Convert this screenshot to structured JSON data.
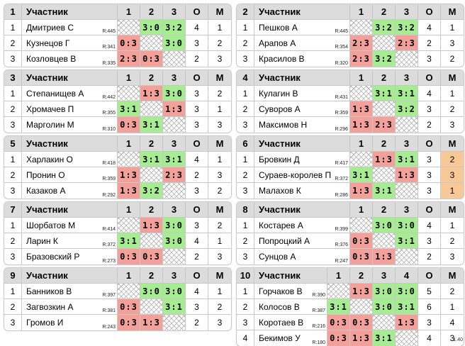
{
  "header": {
    "participant": "Участник",
    "points": "О",
    "place": "М"
  },
  "version": "1.40",
  "groups": [
    {
      "num": "1",
      "cols": [
        "1",
        "2",
        "3"
      ],
      "rows": [
        {
          "idx": "1",
          "name": "Дмитриев С",
          "rating": "R:445",
          "scores": [
            "",
            "3:0",
            "3:2"
          ],
          "res": [
            "x",
            "w",
            "w"
          ],
          "pts": "4",
          "place": "1"
        },
        {
          "idx": "2",
          "name": "Кузнецов Г",
          "rating": "R:341",
          "scores": [
            "0:3",
            "",
            "3:0"
          ],
          "res": [
            "l",
            "x",
            "w"
          ],
          "pts": "3",
          "place": "2"
        },
        {
          "idx": "3",
          "name": "Козловцев В",
          "rating": "R:335",
          "scores": [
            "2:3",
            "0:3",
            ""
          ],
          "res": [
            "l",
            "l",
            "x"
          ],
          "pts": "2",
          "place": "3"
        }
      ]
    },
    {
      "num": "2",
      "cols": [
        "1",
        "2",
        "3"
      ],
      "rows": [
        {
          "idx": "1",
          "name": "Пешков А",
          "rating": "R:445",
          "scores": [
            "",
            "3:2",
            "3:2"
          ],
          "res": [
            "x",
            "w",
            "w"
          ],
          "pts": "4",
          "place": "1"
        },
        {
          "idx": "2",
          "name": "Арапов А",
          "rating": "R:354",
          "scores": [
            "2:3",
            "",
            "2:3"
          ],
          "res": [
            "l",
            "x",
            "l"
          ],
          "pts": "2",
          "place": "3"
        },
        {
          "idx": "3",
          "name": "Красилов В",
          "rating": "R:320",
          "scores": [
            "2:3",
            "3:2",
            ""
          ],
          "res": [
            "l",
            "w",
            "x"
          ],
          "pts": "3",
          "place": "2"
        }
      ]
    },
    {
      "num": "3",
      "cols": [
        "1",
        "2",
        "3"
      ],
      "rows": [
        {
          "idx": "1",
          "name": "Степанищев А",
          "rating": "R:442",
          "scores": [
            "",
            "1:3",
            "3:0"
          ],
          "res": [
            "x",
            "l",
            "w"
          ],
          "pts": "3",
          "place": "2"
        },
        {
          "idx": "2",
          "name": "Хромачев П",
          "rating": "R:355",
          "scores": [
            "3:1",
            "",
            "1:3"
          ],
          "res": [
            "w",
            "x",
            "l"
          ],
          "pts": "3",
          "place": "1"
        },
        {
          "idx": "3",
          "name": "Марголин М",
          "rating": "R:310",
          "scores": [
            "0:3",
            "3:1",
            ""
          ],
          "res": [
            "l",
            "w",
            "x"
          ],
          "pts": "3",
          "place": "3"
        }
      ]
    },
    {
      "num": "4",
      "cols": [
        "1",
        "2",
        "3"
      ],
      "rows": [
        {
          "idx": "1",
          "name": "Кулагин В",
          "rating": "R:431",
          "scores": [
            "",
            "3:1",
            "3:1"
          ],
          "res": [
            "x",
            "w",
            "w"
          ],
          "pts": "4",
          "place": "1"
        },
        {
          "idx": "2",
          "name": "Суворов А",
          "rating": "R:359",
          "scores": [
            "1:3",
            "",
            "3:2"
          ],
          "res": [
            "l",
            "x",
            "w"
          ],
          "pts": "3",
          "place": "2"
        },
        {
          "idx": "3",
          "name": "Максимов Н",
          "rating": "R:296",
          "scores": [
            "1:3",
            "2:3",
            ""
          ],
          "res": [
            "l",
            "l",
            "x"
          ],
          "pts": "2",
          "place": "3"
        }
      ]
    },
    {
      "num": "5",
      "cols": [
        "1",
        "2",
        "3"
      ],
      "rows": [
        {
          "idx": "1",
          "name": "Харлакин О",
          "rating": "R:418",
          "scores": [
            "",
            "3:1",
            "3:1"
          ],
          "res": [
            "x",
            "w",
            "w"
          ],
          "pts": "4",
          "place": "1"
        },
        {
          "idx": "2",
          "name": "Пронин О",
          "rating": "R:359",
          "scores": [
            "1:3",
            "",
            "2:3"
          ],
          "res": [
            "l",
            "x",
            "l"
          ],
          "pts": "2",
          "place": "3"
        },
        {
          "idx": "3",
          "name": "Казаков А",
          "rating": "R:292",
          "scores": [
            "1:3",
            "3:2",
            ""
          ],
          "res": [
            "l",
            "w",
            "x"
          ],
          "pts": "3",
          "place": "2"
        }
      ]
    },
    {
      "num": "6",
      "cols": [
        "1",
        "2",
        "3"
      ],
      "rows": [
        {
          "idx": "1",
          "name": "Бровкин Д",
          "rating": "R:417",
          "scores": [
            "",
            "1:3",
            "3:1"
          ],
          "res": [
            "x",
            "l",
            "w"
          ],
          "pts": "3",
          "place": "2",
          "orange": true
        },
        {
          "idx": "2",
          "name": "Сураев-королев П",
          "rating": "R:372",
          "scores": [
            "3:1",
            "",
            "1:3"
          ],
          "res": [
            "w",
            "x",
            "l"
          ],
          "pts": "3",
          "place": "3",
          "orange": true
        },
        {
          "idx": "3",
          "name": "Малахов К",
          "rating": "R:286",
          "scores": [
            "1:3",
            "3:1",
            ""
          ],
          "res": [
            "l",
            "w",
            "x"
          ],
          "pts": "3",
          "place": "1",
          "orange": true
        }
      ]
    },
    {
      "num": "7",
      "cols": [
        "1",
        "2",
        "3"
      ],
      "rows": [
        {
          "idx": "1",
          "name": "Шорбатов М",
          "rating": "R:414",
          "scores": [
            "",
            "1:3",
            "3:0"
          ],
          "res": [
            "x",
            "l",
            "w"
          ],
          "pts": "3",
          "place": "2"
        },
        {
          "idx": "2",
          "name": "Ларин К",
          "rating": "R:372",
          "scores": [
            "3:1",
            "",
            "3:0"
          ],
          "res": [
            "w",
            "x",
            "w"
          ],
          "pts": "4",
          "place": "1"
        },
        {
          "idx": "3",
          "name": "Бразовский Р",
          "rating": "R:273",
          "scores": [
            "0:3",
            "0:3",
            ""
          ],
          "res": [
            "l",
            "l",
            "x"
          ],
          "pts": "2",
          "place": "3"
        }
      ]
    },
    {
      "num": "8",
      "cols": [
        "1",
        "2",
        "3"
      ],
      "rows": [
        {
          "idx": "1",
          "name": "Костарев А",
          "rating": "R:399",
          "scores": [
            "",
            "3:0",
            "3:0"
          ],
          "res": [
            "x",
            "w",
            "w"
          ],
          "pts": "4",
          "place": "1"
        },
        {
          "idx": "2",
          "name": "Попроцкий А",
          "rating": "R:376",
          "scores": [
            "0:3",
            "",
            "3:1"
          ],
          "res": [
            "l",
            "x",
            "w"
          ],
          "pts": "3",
          "place": "2"
        },
        {
          "idx": "3",
          "name": "Сунцов А",
          "rating": "R:247",
          "scores": [
            "0:3",
            "1:3",
            ""
          ],
          "res": [
            "l",
            "l",
            "x"
          ],
          "pts": "2",
          "place": "3"
        }
      ]
    },
    {
      "num": "9",
      "cols": [
        "1",
        "2",
        "3"
      ],
      "rows": [
        {
          "idx": "1",
          "name": "Банников В",
          "rating": "R:397",
          "scores": [
            "",
            "3:0",
            "3:0"
          ],
          "res": [
            "x",
            "w",
            "w"
          ],
          "pts": "4",
          "place": "1"
        },
        {
          "idx": "2",
          "name": "Загвозкин А",
          "rating": "R:381",
          "scores": [
            "0:3",
            "",
            "3:1"
          ],
          "res": [
            "l",
            "x",
            "w"
          ],
          "pts": "3",
          "place": "2"
        },
        {
          "idx": "3",
          "name": "Громов И",
          "rating": "R:243",
          "scores": [
            "0:3",
            "1:3",
            ""
          ],
          "res": [
            "l",
            "l",
            "x"
          ],
          "pts": "2",
          "place": "3"
        }
      ]
    },
    {
      "num": "10",
      "cols": [
        "1",
        "2",
        "3",
        "4"
      ],
      "rows": [
        {
          "idx": "1",
          "name": "Горчаков В",
          "rating": "R:390",
          "scores": [
            "",
            "1:3",
            "3:0",
            "3:0"
          ],
          "res": [
            "x",
            "l",
            "w",
            "w"
          ],
          "pts": "5",
          "place": "2"
        },
        {
          "idx": "2",
          "name": "Колосов В",
          "rating": "R:387",
          "scores": [
            "3:1",
            "",
            "3:0",
            "3:1"
          ],
          "res": [
            "w",
            "x",
            "w",
            "w"
          ],
          "pts": "6",
          "place": "1"
        },
        {
          "idx": "3",
          "name": "Коротаев В",
          "rating": "R:216",
          "scores": [
            "0:3",
            "0:3",
            "",
            "1:3"
          ],
          "res": [
            "l",
            "l",
            "x",
            "l"
          ],
          "pts": "3",
          "place": "4"
        },
        {
          "idx": "4",
          "name": "Бекимов У",
          "rating": "R:180",
          "scores": [
            "0:3",
            "1:3",
            "3:1",
            ""
          ],
          "res": [
            "l",
            "l",
            "w",
            "x"
          ],
          "pts": "4",
          "place": "3"
        }
      ]
    }
  ]
}
